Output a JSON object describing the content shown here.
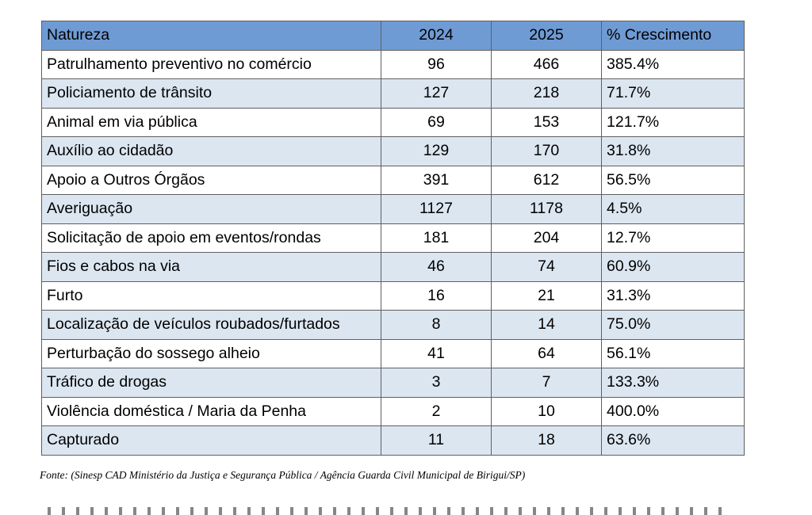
{
  "table": {
    "headers": [
      "Natureza",
      "2024",
      "2025",
      "% Crescimento"
    ],
    "rows": [
      {
        "natureza": "Patrulhamento preventivo no comércio",
        "y2024": "96",
        "y2025": "466",
        "crescimento": "385.4%"
      },
      {
        "natureza": "Policiamento de trânsito",
        "y2024": "127",
        "y2025": "218",
        "crescimento": "71.7%"
      },
      {
        "natureza": "Animal em via pública",
        "y2024": "69",
        "y2025": "153",
        "crescimento": "121.7%"
      },
      {
        "natureza": "Auxílio ao cidadão",
        "y2024": "129",
        "y2025": "170",
        "crescimento": "31.8%"
      },
      {
        "natureza": "Apoio a Outros Órgãos",
        "y2024": "391",
        "y2025": "612",
        "crescimento": "56.5%"
      },
      {
        "natureza": "Averiguação",
        "y2024": "1127",
        "y2025": "1178",
        "crescimento": "4.5%"
      },
      {
        "natureza": "Solicitação de apoio em eventos/rondas",
        "y2024": "181",
        "y2025": "204",
        "crescimento": "12.7%"
      },
      {
        "natureza": "Fios e cabos na via",
        "y2024": "46",
        "y2025": "74",
        "crescimento": "60.9%"
      },
      {
        "natureza": "Furto",
        "y2024": "16",
        "y2025": "21",
        "crescimento": "31.3%"
      },
      {
        "natureza": "Localização de veículos roubados/furtados",
        "y2024": "8",
        "y2025": "14",
        "crescimento": "75.0%"
      },
      {
        "natureza": "Perturbação do sossego alheio",
        "y2024": "41",
        "y2025": "64",
        "crescimento": "56.1%"
      },
      {
        "natureza": "Tráfico de drogas",
        "y2024": "3",
        "y2025": "7",
        "crescimento": "133.3%"
      },
      {
        "natureza": "Violência doméstica / Maria da Penha",
        "y2024": "2",
        "y2025": "10",
        "crescimento": "400.0%"
      },
      {
        "natureza": "Capturado",
        "y2024": "11",
        "y2025": "18",
        "crescimento": "63.6%"
      }
    ]
  },
  "source_note": "Fonte: (Sinesp CAD Ministério da Justiça e Segurança Pública / Agência Guarda Civil Municipal de Birigui/SP)",
  "colors": {
    "header_bg": "#6f9bd4",
    "row_alt_bg": "#dce6f1",
    "border": "#5f5f5f"
  }
}
